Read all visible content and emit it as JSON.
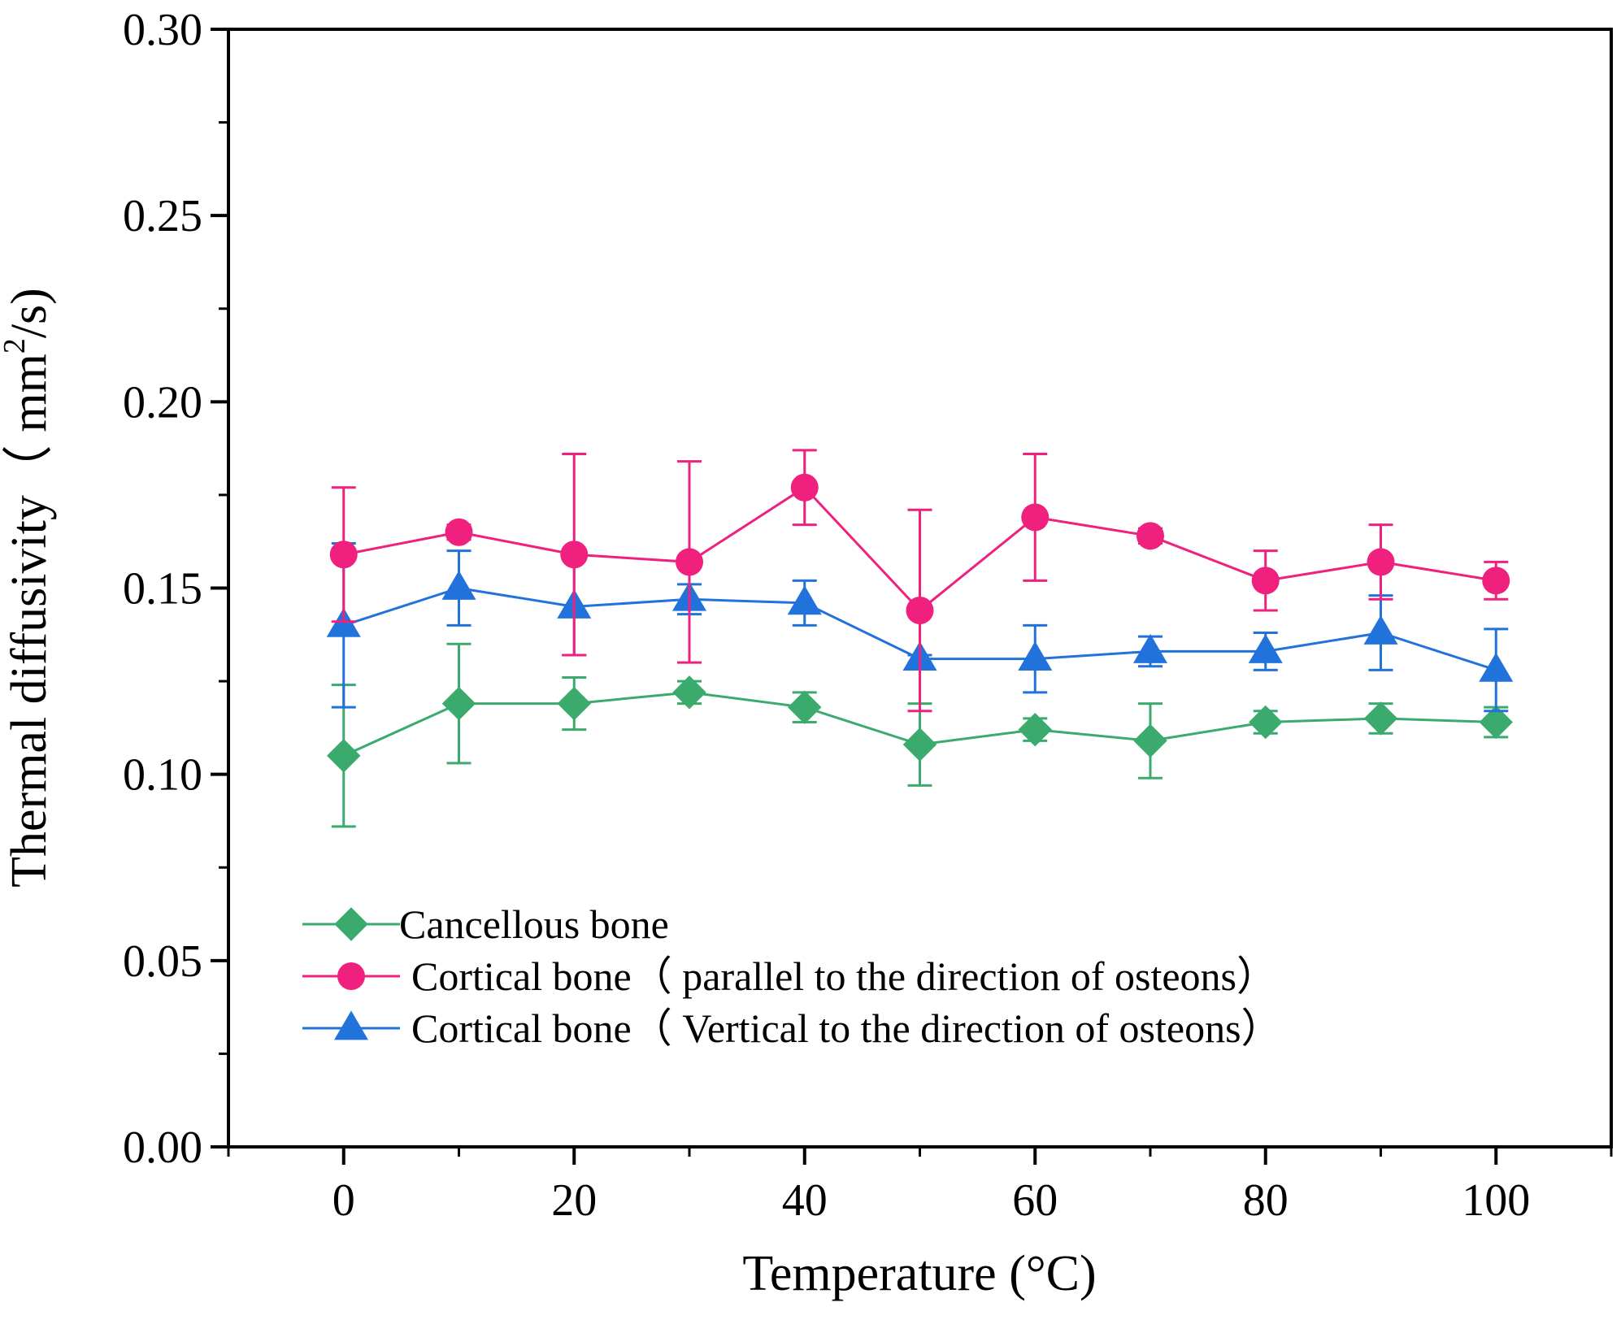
{
  "chart_data": {
    "type": "line",
    "title": "",
    "xlabel": "Temperature (°C)",
    "ylabel_main": "Thermal diffusivity（ mm",
    "ylabel_sup": "2",
    "ylabel_tail": "/s)",
    "xlim": [
      -10,
      110
    ],
    "ylim": [
      0.0,
      0.3
    ],
    "x_ticks": [
      0,
      20,
      40,
      60,
      80,
      100
    ],
    "x_tick_labels": [
      "0",
      "20",
      "40",
      "60",
      "80",
      "100"
    ],
    "y_ticks": [
      0.0,
      0.05,
      0.1,
      0.15,
      0.2,
      0.25,
      0.3
    ],
    "y_tick_labels": [
      "0.00",
      "0.05",
      "0.10",
      "0.15",
      "0.20",
      "0.25",
      "0.30"
    ],
    "x": [
      0,
      10,
      20,
      30,
      40,
      50,
      60,
      70,
      80,
      90,
      100
    ],
    "legend_position": "bottom-left",
    "series": [
      {
        "name": "Cancellous bone",
        "marker": "diamond",
        "color": "#3aab6d",
        "values": [
          0.105,
          0.119,
          0.119,
          0.122,
          0.118,
          0.108,
          0.112,
          0.109,
          0.114,
          0.115,
          0.114
        ],
        "err_upper": [
          0.124,
          0.135,
          0.126,
          0.125,
          0.122,
          0.119,
          0.115,
          0.119,
          0.117,
          0.119,
          0.118
        ],
        "err_lower": [
          0.086,
          0.103,
          0.112,
          0.119,
          0.114,
          0.097,
          0.109,
          0.099,
          0.111,
          0.111,
          0.11
        ]
      },
      {
        "name": "Cortical bone（  parallel to the direction of osteons）",
        "marker": "circle",
        "color": "#f0207f",
        "values": [
          0.159,
          0.165,
          0.159,
          0.157,
          0.177,
          0.144,
          0.169,
          0.164,
          0.152,
          0.157,
          0.152
        ],
        "err_upper": [
          0.177,
          0.167,
          0.186,
          0.184,
          0.187,
          0.171,
          0.186,
          0.166,
          0.16,
          0.167,
          0.157
        ],
        "err_lower": [
          0.141,
          0.163,
          0.132,
          0.13,
          0.167,
          0.117,
          0.152,
          0.162,
          0.144,
          0.147,
          0.147
        ]
      },
      {
        "name": "Cortical bone（  Vertical to the direction of osteons）",
        "marker": "triangle",
        "color": "#2272dc",
        "values": [
          0.14,
          0.15,
          0.145,
          0.147,
          0.146,
          0.131,
          0.131,
          0.133,
          0.133,
          0.138,
          0.128
        ],
        "err_upper": [
          0.162,
          0.16,
          0.158,
          0.151,
          0.152,
          0.132,
          0.14,
          0.137,
          0.138,
          0.148,
          0.139
        ],
        "err_lower": [
          0.118,
          0.14,
          0.132,
          0.143,
          0.14,
          0.13,
          0.122,
          0.129,
          0.128,
          0.128,
          0.117
        ]
      }
    ]
  }
}
